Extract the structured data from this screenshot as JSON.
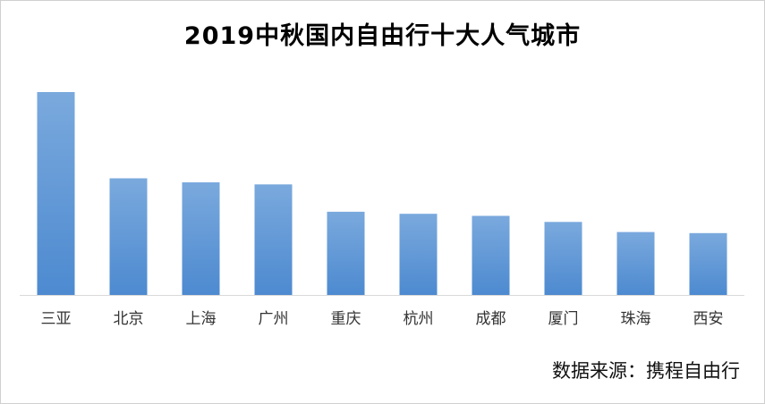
{
  "title": "2019中秋国内自由行十大人气城市",
  "source": "数据来源：携程自由行",
  "chart_data": {
    "type": "bar",
    "title": "2019中秋国内自由行十大人气城市",
    "categories": [
      "三亚",
      "北京",
      "上海",
      "广州",
      "重庆",
      "杭州",
      "成都",
      "厦门",
      "珠海",
      "西安"
    ],
    "values": [
      100,
      57.5,
      55.5,
      54.5,
      41,
      40,
      39,
      36,
      31,
      30.5
    ],
    "ylim": [
      0,
      100
    ],
    "xlabel": "",
    "ylabel": "",
    "grid": false,
    "legend": "none",
    "bar_color_top": "#7aa9dd",
    "bar_color_bottom": "#4d8ad0"
  }
}
